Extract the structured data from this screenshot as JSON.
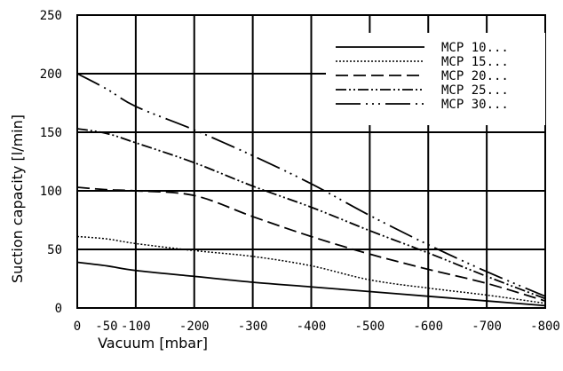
{
  "chart_data": {
    "type": "line",
    "xlabel": "Vacuum [mbar]",
    "ylabel": "Suction capacity [l/min]",
    "xlim": [
      0,
      -800
    ],
    "ylim": [
      0,
      250
    ],
    "x_ticks": [
      "0",
      "-50",
      "-100",
      "-200",
      "-300",
      "-400",
      "-500",
      "-600",
      "-700",
      "-800"
    ],
    "y_ticks": [
      "0",
      "50",
      "100",
      "150",
      "200",
      "250"
    ],
    "grid": true,
    "legend_position": "top-right",
    "series": [
      {
        "name": "MCP 10...",
        "dash": "solid",
        "points": [
          [
            0,
            39
          ],
          [
            -50,
            36
          ],
          [
            -100,
            32
          ],
          [
            -200,
            27
          ],
          [
            -300,
            22
          ],
          [
            -400,
            18
          ],
          [
            -500,
            14
          ],
          [
            -600,
            10
          ],
          [
            -700,
            6
          ],
          [
            -800,
            2
          ]
        ]
      },
      {
        "name": "MCP 15...",
        "dash": "dotted",
        "points": [
          [
            0,
            61
          ],
          [
            -50,
            59
          ],
          [
            -100,
            55
          ],
          [
            -200,
            49
          ],
          [
            -300,
            44
          ],
          [
            -400,
            36
          ],
          [
            -500,
            24
          ],
          [
            -600,
            17
          ],
          [
            -700,
            11
          ],
          [
            -800,
            4
          ]
        ]
      },
      {
        "name": "MCP 20...",
        "dash": "dashed",
        "points": [
          [
            0,
            103
          ],
          [
            -50,
            101
          ],
          [
            -100,
            100
          ],
          [
            -200,
            96
          ],
          [
            -300,
            78
          ],
          [
            -400,
            61
          ],
          [
            -500,
            46
          ],
          [
            -600,
            33
          ],
          [
            -700,
            21
          ],
          [
            -800,
            6
          ]
        ]
      },
      {
        "name": "MCP 25...",
        "dash": "dash-dot-dot",
        "points": [
          [
            0,
            153
          ],
          [
            -50,
            149
          ],
          [
            -100,
            141
          ],
          [
            -200,
            124
          ],
          [
            -300,
            104
          ],
          [
            -400,
            86
          ],
          [
            -500,
            66
          ],
          [
            -600,
            47
          ],
          [
            -700,
            27
          ],
          [
            -800,
            8
          ]
        ]
      },
      {
        "name": "MCP 30...",
        "dash": "long-dash-dot-dot-dot",
        "points": [
          [
            0,
            200
          ],
          [
            -50,
            187
          ],
          [
            -100,
            172
          ],
          [
            -200,
            152
          ],
          [
            -300,
            130
          ],
          [
            -400,
            106
          ],
          [
            -500,
            79
          ],
          [
            -600,
            54
          ],
          [
            -700,
            31
          ],
          [
            -800,
            10
          ]
        ]
      }
    ]
  }
}
